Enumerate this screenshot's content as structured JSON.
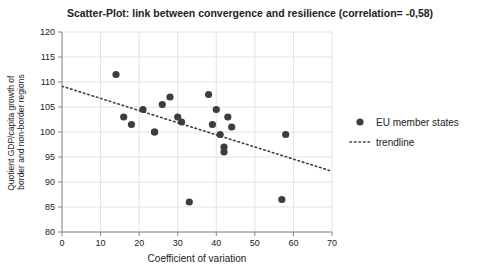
{
  "chart_data": {
    "type": "scatter",
    "title": "Scatter-Plot: link between convergence and resilience (correlation= -0,58)",
    "x_label": "Coefficient of variation",
    "y_label": "Quotient GDP/capita growth of border and non-border regions",
    "xlim": [
      0,
      70
    ],
    "ylim": [
      80,
      120
    ],
    "xticks": [
      0,
      10,
      20,
      30,
      40,
      50,
      60,
      70
    ],
    "yticks": [
      80,
      85,
      90,
      95,
      100,
      105,
      110,
      115,
      120
    ],
    "grid": true,
    "legend": "right",
    "series": [
      {
        "name": "EU member states",
        "type": "scatter",
        "marker": "circle",
        "color": "#3d3d3d",
        "x": [
          14,
          16,
          18,
          21,
          24,
          24,
          26,
          28,
          30,
          31,
          33,
          38,
          39,
          40,
          41,
          42,
          42,
          43,
          44,
          57,
          58
        ],
        "values": [
          111.5,
          103,
          101.5,
          104.5,
          100,
          100,
          105.5,
          107,
          103,
          102,
          86,
          107.5,
          101.5,
          104.5,
          99.5,
          97,
          96,
          103,
          101,
          86.5,
          99.5
        ]
      },
      {
        "name": "trendline",
        "type": "line",
        "line_style": "dotted",
        "color": "#3d3d3d",
        "x": [
          0,
          70
        ],
        "values": [
          109.155,
          92.148
        ]
      }
    ]
  }
}
